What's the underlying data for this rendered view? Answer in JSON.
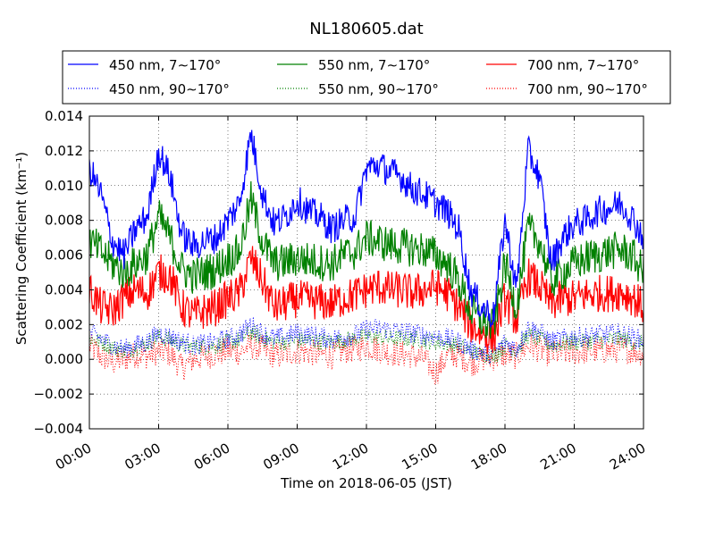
{
  "chart_data": {
    "type": "line",
    "title": "NL180605.dat",
    "xlabel": "Time on 2018-06-05 (JST)",
    "ylabel": "Scattering Coefficient (km⁻¹)",
    "xlim": [
      "00:00",
      "24:00"
    ],
    "ylim": [
      -0.004,
      0.014
    ],
    "grid": true,
    "legend_position": "top",
    "x_tick_labels": [
      "00:00",
      "03:00",
      "06:00",
      "09:00",
      "12:00",
      "15:00",
      "18:00",
      "21:00",
      "24:00"
    ],
    "y_tick_labels": [
      "−0.004",
      "−0.002",
      "0.000",
      "0.002",
      "0.004",
      "0.006",
      "0.008",
      "0.010",
      "0.012",
      "0.014"
    ],
    "x_hours": [
      0,
      0.5,
      1,
      1.5,
      2,
      2.5,
      3,
      3.5,
      4,
      4.5,
      5,
      5.5,
      6,
      6.5,
      7,
      7.5,
      8,
      8.5,
      9,
      9.5,
      10,
      10.5,
      11,
      11.5,
      12,
      12.5,
      13,
      13.5,
      14,
      14.5,
      15,
      15.5,
      16,
      16.5,
      17,
      17.5,
      18,
      18.5,
      19,
      19.5,
      20,
      20.5,
      21,
      21.5,
      22,
      22.5,
      23,
      23.5,
      24
    ],
    "series": [
      {
        "name": "450 nm, 7∼170°",
        "color": "#0000ff",
        "style": "solid",
        "values": [
          0.011,
          0.0095,
          0.0068,
          0.006,
          0.0075,
          0.0082,
          0.012,
          0.0105,
          0.0072,
          0.0065,
          0.0068,
          0.007,
          0.008,
          0.009,
          0.013,
          0.0095,
          0.0078,
          0.0082,
          0.0092,
          0.0085,
          0.0082,
          0.0075,
          0.008,
          0.0082,
          0.011,
          0.0112,
          0.0108,
          0.0105,
          0.0098,
          0.0095,
          0.009,
          0.0085,
          0.0075,
          0.004,
          0.003,
          0.0025,
          0.008,
          0.004,
          0.012,
          0.0105,
          0.0055,
          0.007,
          0.0078,
          0.008,
          0.0085,
          0.0087,
          0.009,
          0.0082,
          0.007
        ]
      },
      {
        "name": "450 nm, 90∼170°",
        "color": "#0000ff",
        "style": "dotted",
        "values": [
          0.0015,
          0.0012,
          0.0008,
          0.0006,
          0.0008,
          0.001,
          0.0015,
          0.0013,
          0.001,
          0.0008,
          0.0009,
          0.001,
          0.0012,
          0.0014,
          0.002,
          0.0015,
          0.0012,
          0.0013,
          0.0015,
          0.0014,
          0.0013,
          0.0012,
          0.0013,
          0.0014,
          0.0017,
          0.0018,
          0.0017,
          0.0016,
          0.0015,
          0.0014,
          0.0013,
          0.0012,
          0.001,
          0.0006,
          0.0004,
          0.0003,
          0.001,
          0.0006,
          0.0018,
          0.0016,
          0.001,
          0.0012,
          0.0013,
          0.0013,
          0.0014,
          0.0014,
          0.0015,
          0.0013,
          0.0011
        ]
      },
      {
        "name": "550 nm, 7∼170°",
        "color": "#008000",
        "style": "solid",
        "values": [
          0.0068,
          0.0062,
          0.0055,
          0.005,
          0.0055,
          0.006,
          0.0082,
          0.007,
          0.0052,
          0.0048,
          0.005,
          0.0052,
          0.0058,
          0.0062,
          0.0092,
          0.0068,
          0.0055,
          0.0056,
          0.0058,
          0.0057,
          0.0056,
          0.0055,
          0.006,
          0.0062,
          0.007,
          0.0068,
          0.0066,
          0.0065,
          0.0064,
          0.0063,
          0.006,
          0.0055,
          0.0045,
          0.0028,
          0.0022,
          0.0018,
          0.0055,
          0.003,
          0.0075,
          0.0068,
          0.0045,
          0.005,
          0.0055,
          0.0058,
          0.006,
          0.0062,
          0.0063,
          0.006,
          0.005
        ]
      },
      {
        "name": "550 nm, 90∼170°",
        "color": "#008000",
        "style": "dotted",
        "values": [
          0.0012,
          0.001,
          0.0007,
          0.0005,
          0.0007,
          0.0009,
          0.0013,
          0.0011,
          0.0008,
          0.0007,
          0.0008,
          0.0008,
          0.001,
          0.0011,
          0.0016,
          0.0012,
          0.001,
          0.001,
          0.0011,
          0.0011,
          0.001,
          0.001,
          0.0011,
          0.0012,
          0.0013,
          0.0013,
          0.0012,
          0.0012,
          0.0012,
          0.0011,
          0.001,
          0.0009,
          0.0008,
          0.0005,
          0.0003,
          0.0002,
          0.0008,
          0.0005,
          0.0014,
          0.0012,
          0.0008,
          0.0009,
          0.001,
          0.001,
          0.0011,
          0.0011,
          0.0012,
          0.001,
          0.0009
        ]
      },
      {
        "name": "700 nm, 7∼170°",
        "color": "#ff0000",
        "style": "solid",
        "values": [
          0.004,
          0.003,
          0.0028,
          0.0035,
          0.004,
          0.0038,
          0.005,
          0.0048,
          0.003,
          0.0025,
          0.0028,
          0.003,
          0.0035,
          0.0038,
          0.0058,
          0.0045,
          0.003,
          0.0032,
          0.0035,
          0.0034,
          0.0033,
          0.0032,
          0.0035,
          0.0037,
          0.004,
          0.0042,
          0.004,
          0.004,
          0.0038,
          0.004,
          0.0042,
          0.0038,
          0.003,
          0.002,
          0.0015,
          0.0012,
          0.0035,
          0.0022,
          0.0048,
          0.0042,
          0.0032,
          0.0035,
          0.0035,
          0.0037,
          0.0038,
          0.0038,
          0.0039,
          0.0036,
          0.003
        ]
      },
      {
        "name": "700 nm, 90∼170°",
        "color": "#ff0000",
        "style": "dotted",
        "values": [
          0.0008,
          0.0002,
          -0.0002,
          0.0,
          0.0003,
          0.0002,
          0.0005,
          0.0003,
          -0.0005,
          0.0,
          0.0002,
          0.0003,
          0.0005,
          0.0004,
          0.0008,
          0.0006,
          0.0002,
          0.0003,
          0.0005,
          0.0004,
          0.0003,
          0.0002,
          0.0005,
          0.0006,
          0.0008,
          0.0006,
          0.0004,
          0.0003,
          0.0002,
          0.0,
          -0.0008,
          0.0002,
          0.0003,
          -0.0002,
          0.0,
          0.0001,
          0.0003,
          0.0002,
          0.0008,
          0.0006,
          0.0003,
          0.0004,
          0.0004,
          0.0005,
          0.0005,
          0.0005,
          0.0006,
          0.0005,
          0.0004
        ]
      }
    ]
  }
}
